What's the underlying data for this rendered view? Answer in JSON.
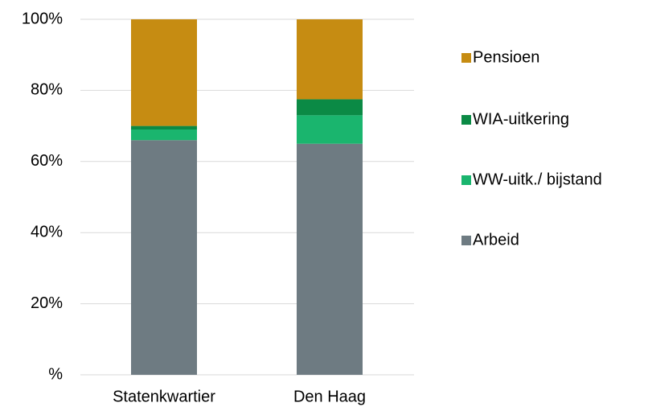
{
  "chart_data": {
    "type": "stacked_bar",
    "categories": [
      "Statenkwartier",
      "Den Haag"
    ],
    "series": [
      {
        "name": "Arbeid",
        "color": "#6e7b82",
        "values": [
          66,
          65
        ]
      },
      {
        "name": "WW-uitk./ bijstand",
        "color": "#1ab56e",
        "values": [
          3,
          8
        ]
      },
      {
        "name": "WIA-uitkering",
        "color": "#0b8a45",
        "values": [
          1,
          4.5
        ]
      },
      {
        "name": "Pensioen",
        "color": "#c68c12",
        "values": [
          30,
          22.5
        ]
      }
    ],
    "ylim": [
      0,
      100
    ],
    "yticks": [
      {
        "value": 0,
        "label": "%"
      },
      {
        "value": 20,
        "label": "20%"
      },
      {
        "value": 40,
        "label": "40%"
      },
      {
        "value": 60,
        "label": "60%"
      },
      {
        "value": 80,
        "label": "80%"
      },
      {
        "value": 100,
        "label": "100%"
      }
    ],
    "grid": true,
    "legend": "right"
  }
}
